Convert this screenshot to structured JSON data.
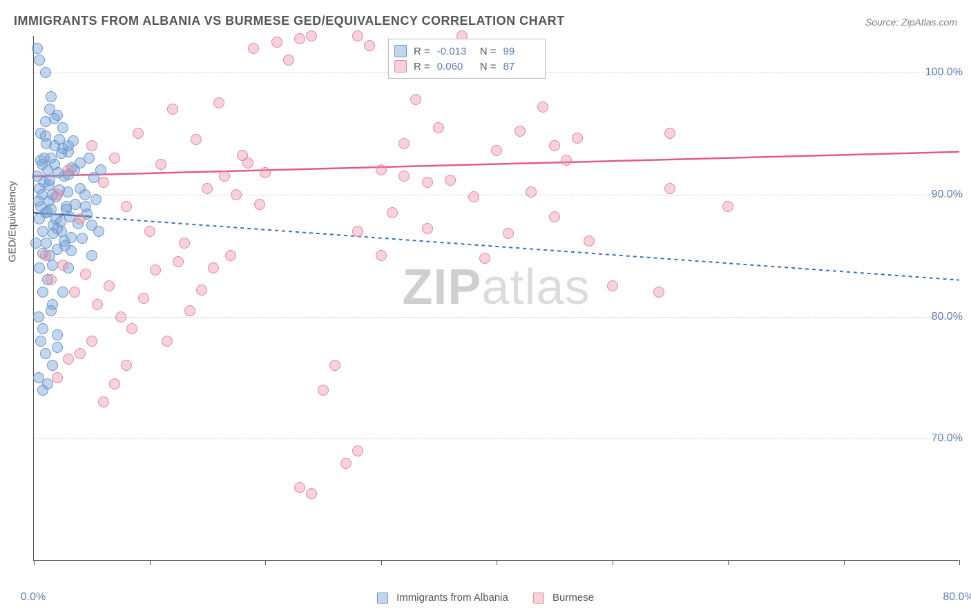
{
  "title": "IMMIGRANTS FROM ALBANIA VS BURMESE GED/EQUIVALENCY CORRELATION CHART",
  "source": "Source: ZipAtlas.com",
  "watermark_a": "ZIP",
  "watermark_b": "atlas",
  "ylabel": "GED/Equivalency",
  "chart": {
    "type": "scatter",
    "xlim": [
      0,
      80
    ],
    "ylim": [
      60,
      103
    ],
    "xtick_positions": [
      0,
      10,
      20,
      30,
      40,
      50,
      60,
      70,
      80
    ],
    "xtick_labels": [
      "0.0%",
      "",
      "",
      "",
      "",
      "",
      "",
      "",
      "80.0%"
    ],
    "ytick_positions": [
      70,
      80,
      90,
      100
    ],
    "ytick_labels": [
      "70.0%",
      "80.0%",
      "90.0%",
      "100.0%"
    ],
    "grid_color": "#d0d0d0",
    "background_color": "#ffffff",
    "series": [
      {
        "name": "Immigrants from Albania",
        "fill_color": "rgba(122,164,214,0.45)",
        "stroke_color": "#6a97c9",
        "marker_size": 16,
        "trend": {
          "x1": 0,
          "y1": 88.5,
          "x2": 80,
          "y2": 83.0,
          "color": "#3d6fb0",
          "dash": "5,5",
          "width": 2
        },
        "solid_trend": {
          "x1": 0,
          "y1": 88.5,
          "x2": 5,
          "y2": 88.2,
          "color": "#2c5faa",
          "width": 2.5
        },
        "points": [
          [
            0.5,
            88
          ],
          [
            0.6,
            89
          ],
          [
            0.7,
            90
          ],
          [
            0.8,
            87
          ],
          [
            0.9,
            91
          ],
          [
            1.0,
            88.5
          ],
          [
            1.1,
            86
          ],
          [
            1.2,
            92
          ],
          [
            1.3,
            89.5
          ],
          [
            1.4,
            85
          ],
          [
            1.5,
            93
          ],
          [
            1.6,
            90
          ],
          [
            1.7,
            87.5
          ],
          [
            1.8,
            94
          ],
          [
            1.9,
            88
          ],
          [
            0.5,
            84
          ],
          [
            0.6,
            95
          ],
          [
            0.8,
            82
          ],
          [
            1.0,
            96
          ],
          [
            1.2,
            83
          ],
          [
            1.4,
            97
          ],
          [
            1.6,
            81
          ],
          [
            1.8,
            92.5
          ],
          [
            2.0,
            85.5
          ],
          [
            2.2,
            94.5
          ],
          [
            2.4,
            87
          ],
          [
            2.6,
            91.5
          ],
          [
            2.8,
            89
          ],
          [
            3.0,
            93.5
          ],
          [
            3.2,
            86.5
          ],
          [
            0.4,
            80
          ],
          [
            0.6,
            78
          ],
          [
            0.8,
            79
          ],
          [
            1.0,
            77
          ],
          [
            1.5,
            80.5
          ],
          [
            2.0,
            78.5
          ],
          [
            2.5,
            82
          ],
          [
            3.0,
            84
          ],
          [
            0.3,
            102
          ],
          [
            0.5,
            101
          ],
          [
            1.0,
            100
          ],
          [
            1.5,
            98
          ],
          [
            2.0,
            96.5
          ],
          [
            2.5,
            95.5
          ],
          [
            3.0,
            94
          ],
          [
            3.5,
            92
          ],
          [
            4.0,
            90.5
          ],
          [
            4.5,
            89
          ],
          [
            5.0,
            87.5
          ],
          [
            0.4,
            75
          ],
          [
            0.8,
            74
          ],
          [
            1.2,
            74.5
          ],
          [
            1.6,
            76
          ],
          [
            2.0,
            77.5
          ],
          [
            0.3,
            91.5
          ],
          [
            0.5,
            90.5
          ],
          [
            0.7,
            92.5
          ],
          [
            0.9,
            93
          ],
          [
            1.1,
            94.2
          ],
          [
            1.3,
            90.8
          ],
          [
            1.5,
            88.8
          ],
          [
            1.7,
            86.8
          ],
          [
            1.9,
            89.8
          ],
          [
            2.1,
            91.8
          ],
          [
            2.3,
            87.8
          ],
          [
            2.5,
            93.8
          ],
          [
            2.7,
            85.8
          ],
          [
            2.9,
            90.2
          ],
          [
            3.1,
            88.2
          ],
          [
            3.3,
            92.2
          ],
          [
            0.2,
            86
          ],
          [
            0.4,
            89.5
          ],
          [
            0.6,
            92.8
          ],
          [
            0.8,
            85.2
          ],
          [
            1.0,
            94.8
          ],
          [
            1.2,
            88.6
          ],
          [
            1.4,
            91.2
          ],
          [
            1.6,
            84.2
          ],
          [
            1.8,
            96.2
          ],
          [
            2.0,
            87.2
          ],
          [
            2.2,
            90.4
          ],
          [
            2.4,
            93.4
          ],
          [
            2.6,
            86.2
          ],
          [
            2.8,
            88.8
          ],
          [
            3.0,
            91.6
          ],
          [
            3.2,
            85.4
          ],
          [
            3.4,
            94.4
          ],
          [
            3.6,
            89.2
          ],
          [
            3.8,
            87.6
          ],
          [
            4.0,
            92.6
          ],
          [
            4.2,
            86.4
          ],
          [
            4.4,
            90.0
          ],
          [
            4.6,
            88.4
          ],
          [
            4.8,
            93.0
          ],
          [
            5.0,
            85.0
          ],
          [
            5.2,
            91.4
          ],
          [
            5.4,
            89.6
          ],
          [
            5.6,
            87.0
          ],
          [
            5.8,
            92.0
          ]
        ]
      },
      {
        "name": "Burmese",
        "fill_color": "rgba(236,148,168,0.42)",
        "stroke_color": "#e08aa0",
        "marker_size": 16,
        "trend": {
          "x1": 0,
          "y1": 91.5,
          "x2": 80,
          "y2": 93.5,
          "color": "#e35a82",
          "dash": "",
          "width": 2.5
        },
        "points": [
          [
            2,
            90
          ],
          [
            3,
            92
          ],
          [
            4,
            88
          ],
          [
            5,
            94
          ],
          [
            6,
            91
          ],
          [
            7,
            93
          ],
          [
            8,
            89
          ],
          [
            9,
            95
          ],
          [
            10,
            87
          ],
          [
            11,
            92.5
          ],
          [
            12,
            97
          ],
          [
            13,
            86
          ],
          [
            14,
            94.5
          ],
          [
            15,
            90.5
          ],
          [
            16,
            97.5
          ],
          [
            17,
            85
          ],
          [
            18,
            93.2
          ],
          [
            19,
            102
          ],
          [
            20,
            91.8
          ],
          [
            21,
            102.5
          ],
          [
            22,
            101
          ],
          [
            23,
            102.8
          ],
          [
            24,
            103
          ],
          [
            25,
            74
          ],
          [
            26,
            76
          ],
          [
            27,
            68
          ],
          [
            28,
            103
          ],
          [
            29,
            102.2
          ],
          [
            23,
            66
          ],
          [
            24,
            65.5
          ],
          [
            30,
            92
          ],
          [
            31,
            88.5
          ],
          [
            32,
            94.2
          ],
          [
            33,
            97.8
          ],
          [
            34,
            87.2
          ],
          [
            35,
            95.5
          ],
          [
            36,
            91.2
          ],
          [
            37,
            103
          ],
          [
            38,
            89.8
          ],
          [
            39,
            84.8
          ],
          [
            40,
            93.6
          ],
          [
            41,
            86.8
          ],
          [
            42,
            95.2
          ],
          [
            43,
            90.2
          ],
          [
            44,
            97.2
          ],
          [
            45,
            88.2
          ],
          [
            46,
            92.8
          ],
          [
            47,
            94.6
          ],
          [
            48,
            86.2
          ],
          [
            28,
            69
          ],
          [
            1,
            85
          ],
          [
            1.5,
            83
          ],
          [
            2.5,
            84.2
          ],
          [
            3.5,
            82
          ],
          [
            4.5,
            83.5
          ],
          [
            5.5,
            81
          ],
          [
            6.5,
            82.5
          ],
          [
            7.5,
            80
          ],
          [
            8.5,
            79
          ],
          [
            9.5,
            81.5
          ],
          [
            10.5,
            83.8
          ],
          [
            11.5,
            78
          ],
          [
            12.5,
            84.5
          ],
          [
            13.5,
            80.5
          ],
          [
            14.5,
            82.2
          ],
          [
            15.5,
            84
          ],
          [
            16.5,
            91.5
          ],
          [
            17.5,
            90
          ],
          [
            18.5,
            92.6
          ],
          [
            19.5,
            89.2
          ],
          [
            32,
            91.5
          ],
          [
            45,
            94.0
          ],
          [
            50,
            82.5
          ],
          [
            55,
            90.5
          ],
          [
            60,
            89
          ],
          [
            54,
            82
          ],
          [
            55,
            95
          ],
          [
            28,
            87
          ],
          [
            30,
            85
          ],
          [
            34,
            91
          ],
          [
            2,
            75
          ],
          [
            3,
            76.5
          ],
          [
            4,
            77
          ],
          [
            5,
            78
          ],
          [
            6,
            73
          ],
          [
            7,
            74.5
          ],
          [
            8,
            76
          ]
        ]
      }
    ],
    "stats": [
      {
        "r_label": "R =",
        "r": "-0.013",
        "n_label": "N =",
        "n": "99"
      },
      {
        "r_label": "R =",
        "r": "0.060",
        "n_label": "N =",
        "n": "87"
      }
    ]
  }
}
